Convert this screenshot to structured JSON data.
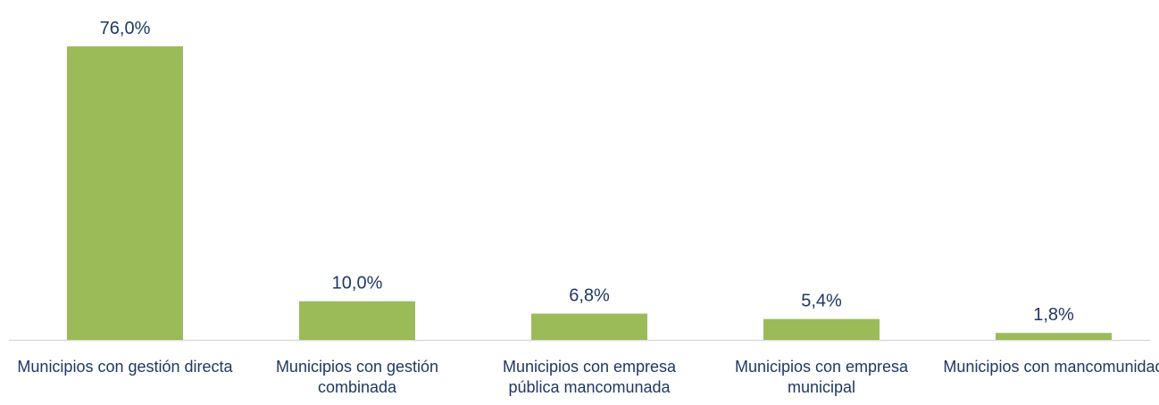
{
  "chart_data": {
    "type": "bar",
    "categories": [
      "Municipios con gestión directa",
      "Municipios con gestión combinada",
      "Municipios con empresa pública mancomunada",
      "Municipios con empresa municipal",
      "Municipios con mancomunidad"
    ],
    "values": [
      76,
      10,
      6.8,
      5.4,
      1.8
    ],
    "value_labels": [
      "76,0%",
      "10,0%",
      "6,8%",
      "5,4%",
      "1,8%"
    ],
    "color": "#9bbb59"
  }
}
